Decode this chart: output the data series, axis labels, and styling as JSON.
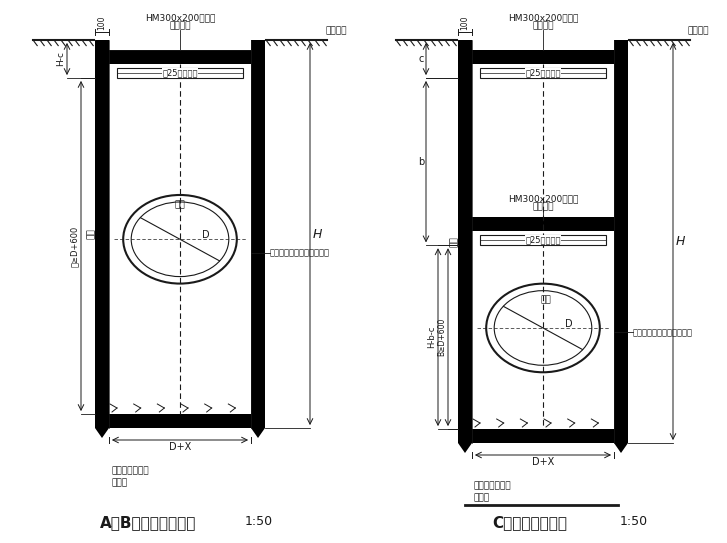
{
  "bg_color": "#ffffff",
  "line_color": "#1a1a1a",
  "title_left": "A、B型管坑支护剖面",
  "title_right": "C型管坑支护剖面",
  "scale": "1:50",
  "label_hm": "HM300x200钢腰梁",
  "label_tongchang": "通长设置",
  "label_i25": "工25槽钢支撑",
  "label_guandao": "管道",
  "label_jianshui": "管道基础见排水工程通用图",
  "label_dimiao": "地面标高",
  "label_100": "100",
  "label_H": "H",
  "label_c": "c",
  "label_b": "b",
  "label_Hc": "H-c",
  "label_Hbc": "H-b-c",
  "label_BDp600_A": "目≥D+600",
  "label_BDp600_C": "B≥D+600",
  "label_DpX": "D+X",
  "label_D": "D",
  "label_zhuangui": "桩柱",
  "label_milarsen": "密扣拉森钢板桩",
  "label_huocaogong": "或槽钢",
  "fig_w": 7.27,
  "fig_h": 5.43,
  "dpi": 100
}
